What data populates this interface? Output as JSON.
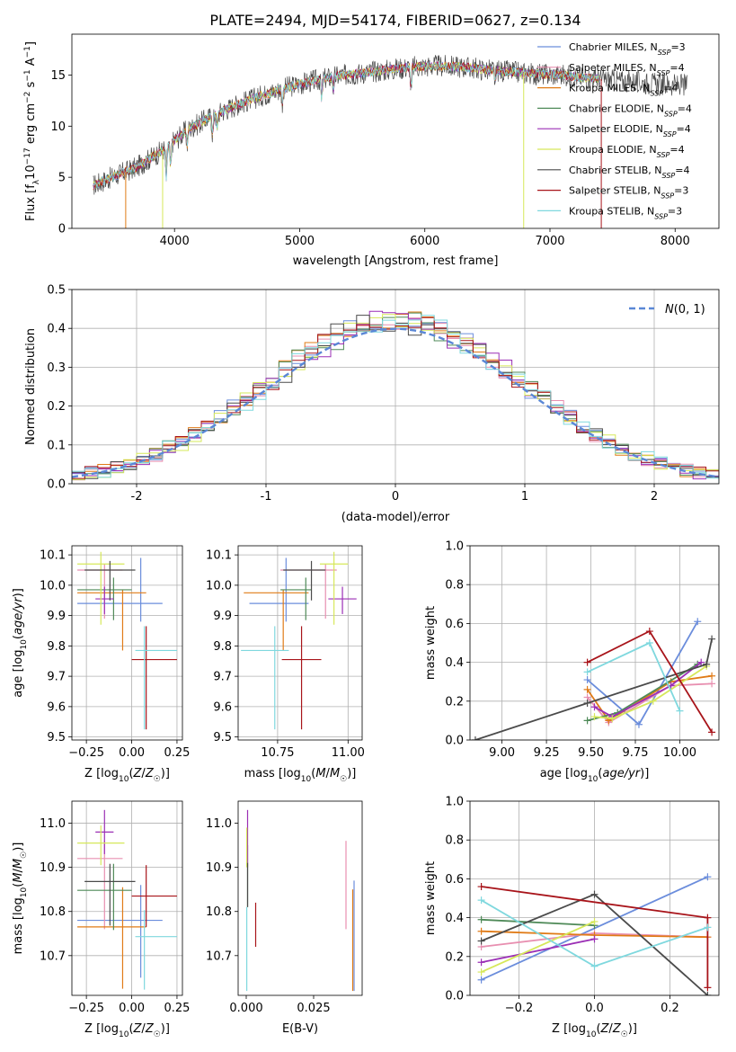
{
  "figure": {
    "title": "PLATE=2494, MJD=54174, FIBERID=0627, z=0.134"
  },
  "colors": {
    "Chabrier MILES": "#6b8ddc",
    "Salpeter MILES": "#e88fb0",
    "Kroupa MILES": "#e07b17",
    "Chabrier ELODIE": "#4f8a58",
    "Salpeter ELODIE": "#9b2fb5",
    "Kroupa ELODIE": "#d6e85a",
    "Chabrier STELIB": "#4b4b4b",
    "Salpeter STELIB": "#a8141a",
    "Kroupa STELIB": "#7fd8de"
  },
  "chart_data": [
    {
      "id": "spectrum",
      "type": "line",
      "xlabel": "wavelength [Angstrom, rest frame]",
      "ylabel": "Flux [f_λ10^-17 erg cm^-2 s^-1 A^-1]",
      "xlim": [
        3180,
        8350
      ],
      "ylim": [
        0,
        19
      ],
      "xticks": [
        4000,
        5000,
        6000,
        7000,
        8000
      ],
      "yticks": [
        0,
        5,
        10,
        15
      ],
      "legend_position": "upper-right",
      "legend": [
        "Chabrier MILES, N_SSP=3",
        "Salpeter MILES, N_SSP=4",
        "Kroupa MILES, N_SSP=4",
        "Chabrier ELODIE, N_SSP=4",
        "Salpeter ELODIE, N_SSP=4",
        "Kroupa ELODIE, N_SSP=4",
        "Chabrier STELIB, N_SSP=4",
        "Salpeter STELIB, N_SSP=3",
        "Kroupa STELIB, N_SSP=3"
      ],
      "continuum": {
        "x": [
          3350,
          3500,
          3700,
          3900,
          4100,
          4300,
          4500,
          4700,
          4900,
          5100,
          5300,
          5500,
          5700,
          5900,
          6100,
          6300,
          6500,
          6700,
          6900,
          7100,
          7300,
          7500,
          7700,
          7900,
          8100
        ],
        "y": [
          4.2,
          5.0,
          6.0,
          7.6,
          9.6,
          11.0,
          12.1,
          13.0,
          13.8,
          14.4,
          14.9,
          15.2,
          15.5,
          15.8,
          15.9,
          15.8,
          15.5,
          15.3,
          15.1,
          15.0,
          14.7,
          14.5,
          14.3,
          14.1,
          14.0
        ]
      },
      "model_wavelength_range": [
        3350,
        7400
      ]
    },
    {
      "id": "residuals",
      "type": "histogram",
      "xlabel": "(data-model)/error",
      "ylabel": "Normed distribution",
      "xlim": [
        -2.5,
        2.5
      ],
      "ylim": [
        0,
        0.5
      ],
      "xticks": [
        -2,
        -1,
        0,
        1,
        2
      ],
      "yticks": [
        0,
        0.1,
        0.2,
        0.3,
        0.4,
        0.5
      ],
      "grid": true,
      "legend_position": "upper-right",
      "legend": [
        "N(0,1)"
      ],
      "bin_width": 0.1,
      "bins_start": -2.5
    },
    {
      "id": "age-vs-Z",
      "type": "scatter",
      "xlabel": "Z [log10(Z/Z☉)]",
      "ylabel": "age [log10(age/yr)]",
      "xlim": [
        -0.33,
        0.28
      ],
      "ylim": [
        9.49,
        10.13
      ],
      "xticks": [
        -0.25,
        0.0,
        0.25
      ],
      "yticks": [
        9.5,
        9.6,
        9.7,
        9.8,
        9.9,
        10.0,
        10.1
      ],
      "grid": true,
      "points": [
        {
          "name": "Chabrier MILES",
          "x": 0.05,
          "xerr": [
            0.35,
            0.12
          ],
          "y": 9.94,
          "yerr": [
            0.06,
            0.15
          ]
        },
        {
          "name": "Salpeter MILES",
          "x": -0.15,
          "xerr": [
            0.15,
            0.1
          ],
          "y": 10.05,
          "yerr": [
            0.16,
            0.02
          ]
        },
        {
          "name": "Kroupa MILES",
          "x": -0.05,
          "xerr": [
            0.25,
            0.13
          ],
          "y": 9.975,
          "yerr": [
            0.19,
            0.01
          ]
        },
        {
          "name": "Chabrier ELODIE",
          "x": -0.1,
          "xerr": [
            0.2,
            0.1
          ],
          "y": 9.985,
          "yerr": [
            0.1,
            0.04
          ]
        },
        {
          "name": "Salpeter ELODIE",
          "x": -0.15,
          "xerr": [
            0.05,
            0.05
          ],
          "y": 9.955,
          "yerr": [
            0.05,
            0.04
          ]
        },
        {
          "name": "Kroupa ELODIE",
          "x": -0.17,
          "xerr": [
            0.13,
            0.13
          ],
          "y": 10.07,
          "yerr": [
            0.2,
            0.04
          ]
        },
        {
          "name": "Chabrier STELIB",
          "x": -0.12,
          "xerr": [
            0.14,
            0.14
          ],
          "y": 10.05,
          "yerr": [
            0.1,
            0.03
          ]
        },
        {
          "name": "Salpeter STELIB",
          "x": 0.08,
          "xerr": [
            0.08,
            0.17
          ],
          "y": 9.755,
          "yerr": [
            0.23,
            0.11
          ]
        },
        {
          "name": "Kroupa STELIB",
          "x": 0.07,
          "xerr": [
            0.05,
            0.18
          ],
          "y": 9.785,
          "yerr": [
            0.26,
            0.08
          ]
        }
      ]
    },
    {
      "id": "age-vs-mass",
      "type": "scatter",
      "xlabel": "mass [log10(M/M☉)]",
      "ylabel": "",
      "xlim": [
        10.61,
        11.05
      ],
      "ylim": [
        9.49,
        10.13
      ],
      "xticks": [
        10.75,
        11.0
      ],
      "yticks": [
        9.5,
        9.6,
        9.7,
        9.8,
        9.9,
        10.0,
        10.1
      ],
      "grid": true,
      "points": [
        {
          "name": "Chabrier MILES",
          "x": 10.78,
          "xerr": [
            0.13,
            0.08
          ],
          "y": 9.94,
          "yerr": [
            0.06,
            0.15
          ]
        },
        {
          "name": "Salpeter MILES",
          "x": 10.92,
          "xerr": [
            0.16,
            0.04
          ],
          "y": 10.05,
          "yerr": [
            0.16,
            0.02
          ]
        },
        {
          "name": "Kroupa MILES",
          "x": 10.77,
          "xerr": [
            0.14,
            0.09
          ],
          "y": 9.975,
          "yerr": [
            0.19,
            0.01
          ]
        },
        {
          "name": "Chabrier ELODIE",
          "x": 10.85,
          "xerr": [
            0.09,
            0.02
          ],
          "y": 9.985,
          "yerr": [
            0.1,
            0.04
          ]
        },
        {
          "name": "Salpeter ELODIE",
          "x": 10.98,
          "xerr": [
            0.05,
            0.05
          ],
          "y": 9.955,
          "yerr": [
            0.05,
            0.04
          ]
        },
        {
          "name": "Kroupa ELODIE",
          "x": 10.95,
          "xerr": [
            0.05,
            0.05
          ],
          "y": 10.07,
          "yerr": [
            0.2,
            0.04
          ]
        },
        {
          "name": "Chabrier STELIB",
          "x": 10.87,
          "xerr": [
            0.1,
            0.05
          ],
          "y": 10.05,
          "yerr": [
            0.1,
            0.03
          ]
        },
        {
          "name": "Salpeter STELIB",
          "x": 10.835,
          "xerr": [
            0.07,
            0.07
          ],
          "y": 9.755,
          "yerr": [
            0.23,
            0.11
          ]
        },
        {
          "name": "Kroupa STELIB",
          "x": 10.74,
          "xerr": [
            0.12,
            0.05
          ],
          "y": 9.785,
          "yerr": [
            0.26,
            0.08
          ]
        }
      ]
    },
    {
      "id": "weight-vs-age",
      "type": "line",
      "xlabel": "age [log10(age/yr)]",
      "ylabel": "mass weight",
      "xlim": [
        8.82,
        10.22
      ],
      "ylim": [
        0,
        1.0
      ],
      "xticks": [
        9.0,
        9.25,
        9.5,
        9.75,
        10.0
      ],
      "yticks": [
        0.0,
        0.2,
        0.4,
        0.6,
        0.8,
        1.0
      ],
      "grid": true,
      "series": [
        {
          "name": "Chabrier MILES",
          "x": [
            9.48,
            9.77,
            10.1
          ],
          "y": [
            0.31,
            0.08,
            0.61
          ]
        },
        {
          "name": "Salpeter MILES",
          "x": [
            9.48,
            9.6,
            9.95,
            10.18
          ],
          "y": [
            0.22,
            0.09,
            0.28,
            0.29
          ]
        },
        {
          "name": "Kroupa MILES",
          "x": [
            9.48,
            9.6,
            9.95,
            10.18
          ],
          "y": [
            0.26,
            0.1,
            0.3,
            0.33
          ]
        },
        {
          "name": "Chabrier ELODIE",
          "x": [
            9.48,
            9.65,
            10.1
          ],
          "y": [
            0.1,
            0.14,
            0.39
          ]
        },
        {
          "name": "Salpeter ELODIE",
          "x": [
            9.52,
            9.62,
            9.95,
            10.12
          ],
          "y": [
            0.17,
            0.12,
            0.28,
            0.4
          ]
        },
        {
          "name": "Kroupa ELODIE",
          "x": [
            9.52,
            9.62,
            9.85,
            10.15
          ],
          "y": [
            0.12,
            0.11,
            0.2,
            0.38
          ]
        },
        {
          "name": "Chabrier STELIB",
          "x": [
            8.85,
            9.48,
            10.15,
            10.18
          ],
          "y": [
            0.0,
            0.19,
            0.39,
            0.52
          ]
        },
        {
          "name": "Salpeter STELIB",
          "x": [
            9.48,
            9.83,
            10.18
          ],
          "y": [
            0.4,
            0.56,
            0.04
          ]
        },
        {
          "name": "Kroupa STELIB",
          "x": [
            9.48,
            9.83,
            10.0
          ],
          "y": [
            0.35,
            0.5,
            0.15
          ]
        }
      ]
    },
    {
      "id": "mass-vs-Z",
      "type": "scatter",
      "xlabel": "Z [log10(Z/Z☉)]",
      "ylabel": "mass [log10(M/M☉)]",
      "xlim": [
        -0.33,
        0.28
      ],
      "ylim": [
        10.61,
        11.05
      ],
      "xticks": [
        -0.25,
        0.0,
        0.25
      ],
      "yticks": [
        10.7,
        10.8,
        10.9,
        11.0
      ],
      "grid": true,
      "points": [
        {
          "name": "Chabrier MILES",
          "x": 0.05,
          "xerr": [
            0.35,
            0.12
          ],
          "y": 10.78,
          "yerr": [
            0.13,
            0.08
          ]
        },
        {
          "name": "Salpeter MILES",
          "x": -0.15,
          "xerr": [
            0.15,
            0.1
          ],
          "y": 10.92,
          "yerr": [
            0.16,
            0.04
          ]
        },
        {
          "name": "Kroupa MILES",
          "x": -0.05,
          "xerr": [
            0.25,
            0.13
          ],
          "y": 10.765,
          "yerr": [
            0.14,
            0.09
          ]
        },
        {
          "name": "Chabrier ELODIE",
          "x": -0.1,
          "xerr": [
            0.2,
            0.1
          ],
          "y": 10.848,
          "yerr": [
            0.09,
            0.06
          ]
        },
        {
          "name": "Salpeter ELODIE",
          "x": -0.15,
          "xerr": [
            0.05,
            0.05
          ],
          "y": 10.98,
          "yerr": [
            0.05,
            0.05
          ]
        },
        {
          "name": "Kroupa ELODIE",
          "x": -0.17,
          "xerr": [
            0.13,
            0.13
          ],
          "y": 10.955,
          "yerr": [
            0.05,
            0.04
          ]
        },
        {
          "name": "Chabrier STELIB",
          "x": -0.12,
          "xerr": [
            0.14,
            0.14
          ],
          "y": 10.868,
          "yerr": [
            0.1,
            0.04
          ]
        },
        {
          "name": "Salpeter STELIB",
          "x": 0.08,
          "xerr": [
            0.08,
            0.17
          ],
          "y": 10.835,
          "yerr": [
            0.07,
            0.07
          ]
        },
        {
          "name": "Kroupa STELIB",
          "x": 0.07,
          "xerr": [
            0.05,
            0.18
          ],
          "y": 10.743,
          "yerr": [
            0.12,
            0.06
          ]
        }
      ]
    },
    {
      "id": "mass-vs-EBV",
      "type": "scatter",
      "xlabel": "E(B-V)",
      "ylabel": "",
      "xlim": [
        -0.003,
        0.043
      ],
      "ylim": [
        10.61,
        11.05
      ],
      "xticks": [
        0.0,
        0.025
      ],
      "yticks": [
        10.7,
        10.8,
        10.9,
        11.0
      ],
      "grid": false,
      "points": [
        {
          "name": "Chabrier MILES",
          "x": 0.04,
          "y": 10.79,
          "yerr": [
            0.17,
            0.08
          ]
        },
        {
          "name": "Salpeter MILES",
          "x": 0.037,
          "y": 10.86,
          "yerr": [
            0.1,
            0.1
          ]
        },
        {
          "name": "Kroupa MILES",
          "x": 0.0395,
          "y": 10.77,
          "yerr": [
            0.15,
            0.08
          ]
        },
        {
          "name": "Chabrier ELODIE",
          "x": 0.0005,
          "y": 10.9,
          "yerr": [
            0.09,
            0.05
          ]
        },
        {
          "name": "Salpeter ELODIE",
          "x": 0.0005,
          "y": 10.99,
          "yerr": [
            0.09,
            0.04
          ]
        },
        {
          "name": "Kroupa ELODIE",
          "x": 0.0002,
          "y": 10.95,
          "yerr": [
            0.05,
            0.04
          ]
        },
        {
          "name": "Chabrier STELIB",
          "x": 0.0005,
          "y": 10.88,
          "yerr": [
            0.07,
            0.03
          ]
        },
        {
          "name": "Salpeter STELIB",
          "x": 0.0035,
          "y": 10.77,
          "yerr": [
            0.05,
            0.05
          ]
        },
        {
          "name": "Kroupa STELIB",
          "x": 0.0002,
          "y": 10.72,
          "yerr": [
            0.1,
            0.09
          ]
        }
      ]
    },
    {
      "id": "weight-vs-Z",
      "type": "line",
      "xlabel": "Z [log10(Z/Z☉)]",
      "ylabel": "mass weight",
      "xlim": [
        -0.33,
        0.33
      ],
      "ylim": [
        0,
        1.0
      ],
      "xticks": [
        -0.2,
        0.0,
        0.2
      ],
      "yticks": [
        0.0,
        0.2,
        0.4,
        0.6,
        0.8,
        1.0
      ],
      "grid": true,
      "series": [
        {
          "name": "Chabrier MILES",
          "x": [
            -0.3,
            0.3
          ],
          "y": [
            0.08,
            0.61
          ]
        },
        {
          "name": "Salpeter MILES",
          "x": [
            -0.3,
            0.0,
            0.3
          ],
          "y": [
            0.25,
            0.32,
            0.3
          ]
        },
        {
          "name": "Kroupa MILES",
          "x": [
            -0.3,
            0.0,
            0.3
          ],
          "y": [
            0.33,
            0.31,
            0.3
          ]
        },
        {
          "name": "Chabrier ELODIE",
          "x": [
            -0.3,
            0.0
          ],
          "y": [
            0.39,
            0.36
          ]
        },
        {
          "name": "Salpeter ELODIE",
          "x": [
            -0.3,
            0.0
          ],
          "y": [
            0.17,
            0.29
          ]
        },
        {
          "name": "Kroupa ELODIE",
          "x": [
            -0.3,
            0.0
          ],
          "y": [
            0.12,
            0.38
          ]
        },
        {
          "name": "Chabrier STELIB",
          "x": [
            -0.3,
            0.0,
            0.3
          ],
          "y": [
            0.28,
            0.52,
            0.0
          ]
        },
        {
          "name": "Salpeter STELIB",
          "x": [
            -0.3,
            0.3,
            0.3
          ],
          "y": [
            0.56,
            0.4,
            0.04
          ]
        },
        {
          "name": "Kroupa STELIB",
          "x": [
            -0.3,
            0.0,
            0.3
          ],
          "y": [
            0.49,
            0.15,
            0.35
          ]
        }
      ]
    }
  ]
}
